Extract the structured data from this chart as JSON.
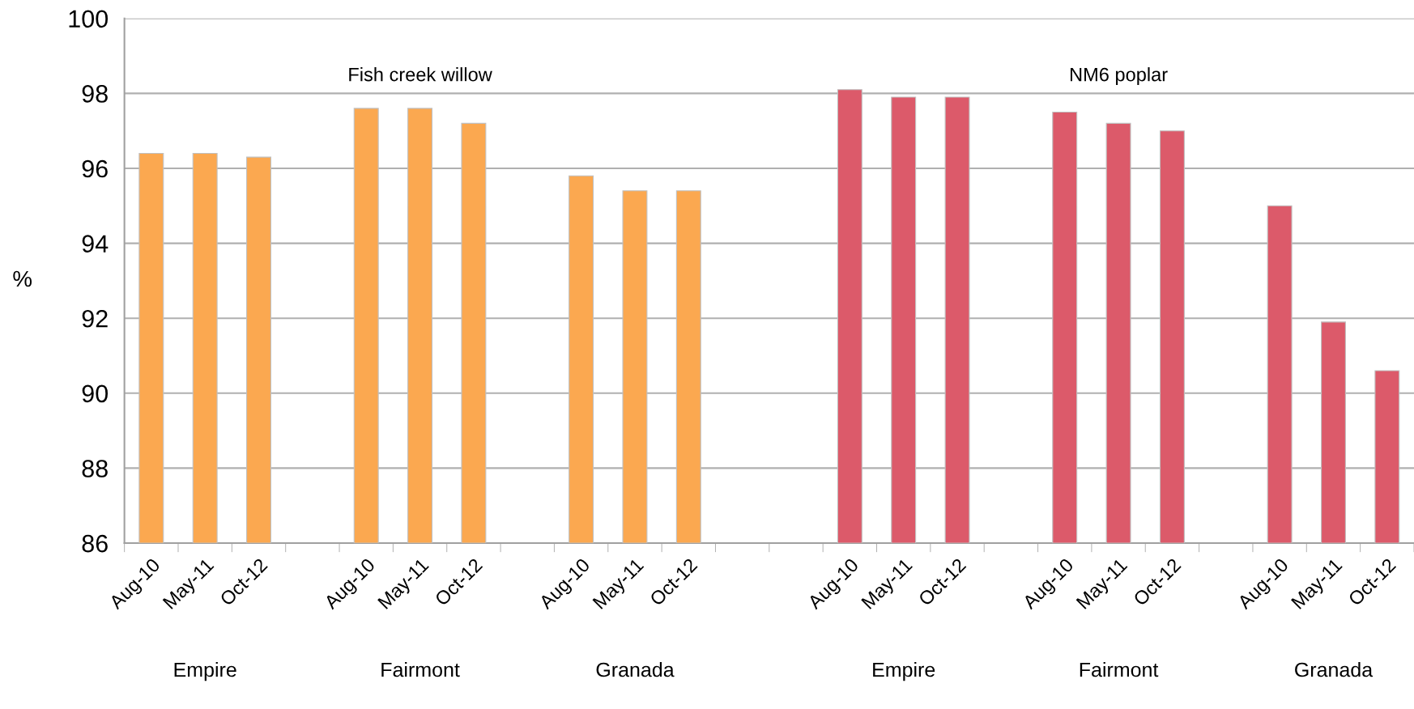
{
  "chart_data": {
    "type": "bar",
    "ylabel": "%",
    "ylim": [
      86,
      100
    ],
    "yticks": [
      86,
      88,
      90,
      92,
      94,
      96,
      98,
      100
    ],
    "grid": "y",
    "categories": [
      "Aug-10",
      "May-11",
      "Oct-12",
      null,
      "Aug-10",
      "May-11",
      "Oct-12",
      null,
      "Aug-10",
      "May-11",
      "Oct-12",
      null,
      null,
      "Aug-10",
      "May-11",
      "Oct-12",
      null,
      "Aug-10",
      "May-11",
      "Oct-12",
      null,
      "Aug-10",
      "May-11",
      "Oct-12"
    ],
    "series": [
      {
        "name": "Fish creek willow",
        "color": "#fba850",
        "values": [
          96.4,
          96.4,
          96.3,
          null,
          97.6,
          97.6,
          97.2,
          null,
          95.8,
          95.4,
          95.4,
          null,
          null,
          null,
          null,
          null,
          null,
          null,
          null,
          null,
          null,
          null,
          null,
          null
        ]
      },
      {
        "name": "NM6 poplar",
        "color": "#dc5a6a",
        "values": [
          null,
          null,
          null,
          null,
          null,
          null,
          null,
          null,
          null,
          null,
          null,
          null,
          null,
          98.1,
          97.9,
          97.9,
          null,
          97.5,
          97.2,
          97.0,
          null,
          95.0,
          91.9,
          90.6
        ]
      }
    ],
    "annotations": [
      "Empire",
      "Fairmont",
      "Granada",
      "Empire",
      "Fairmont",
      "Granada"
    ]
  }
}
